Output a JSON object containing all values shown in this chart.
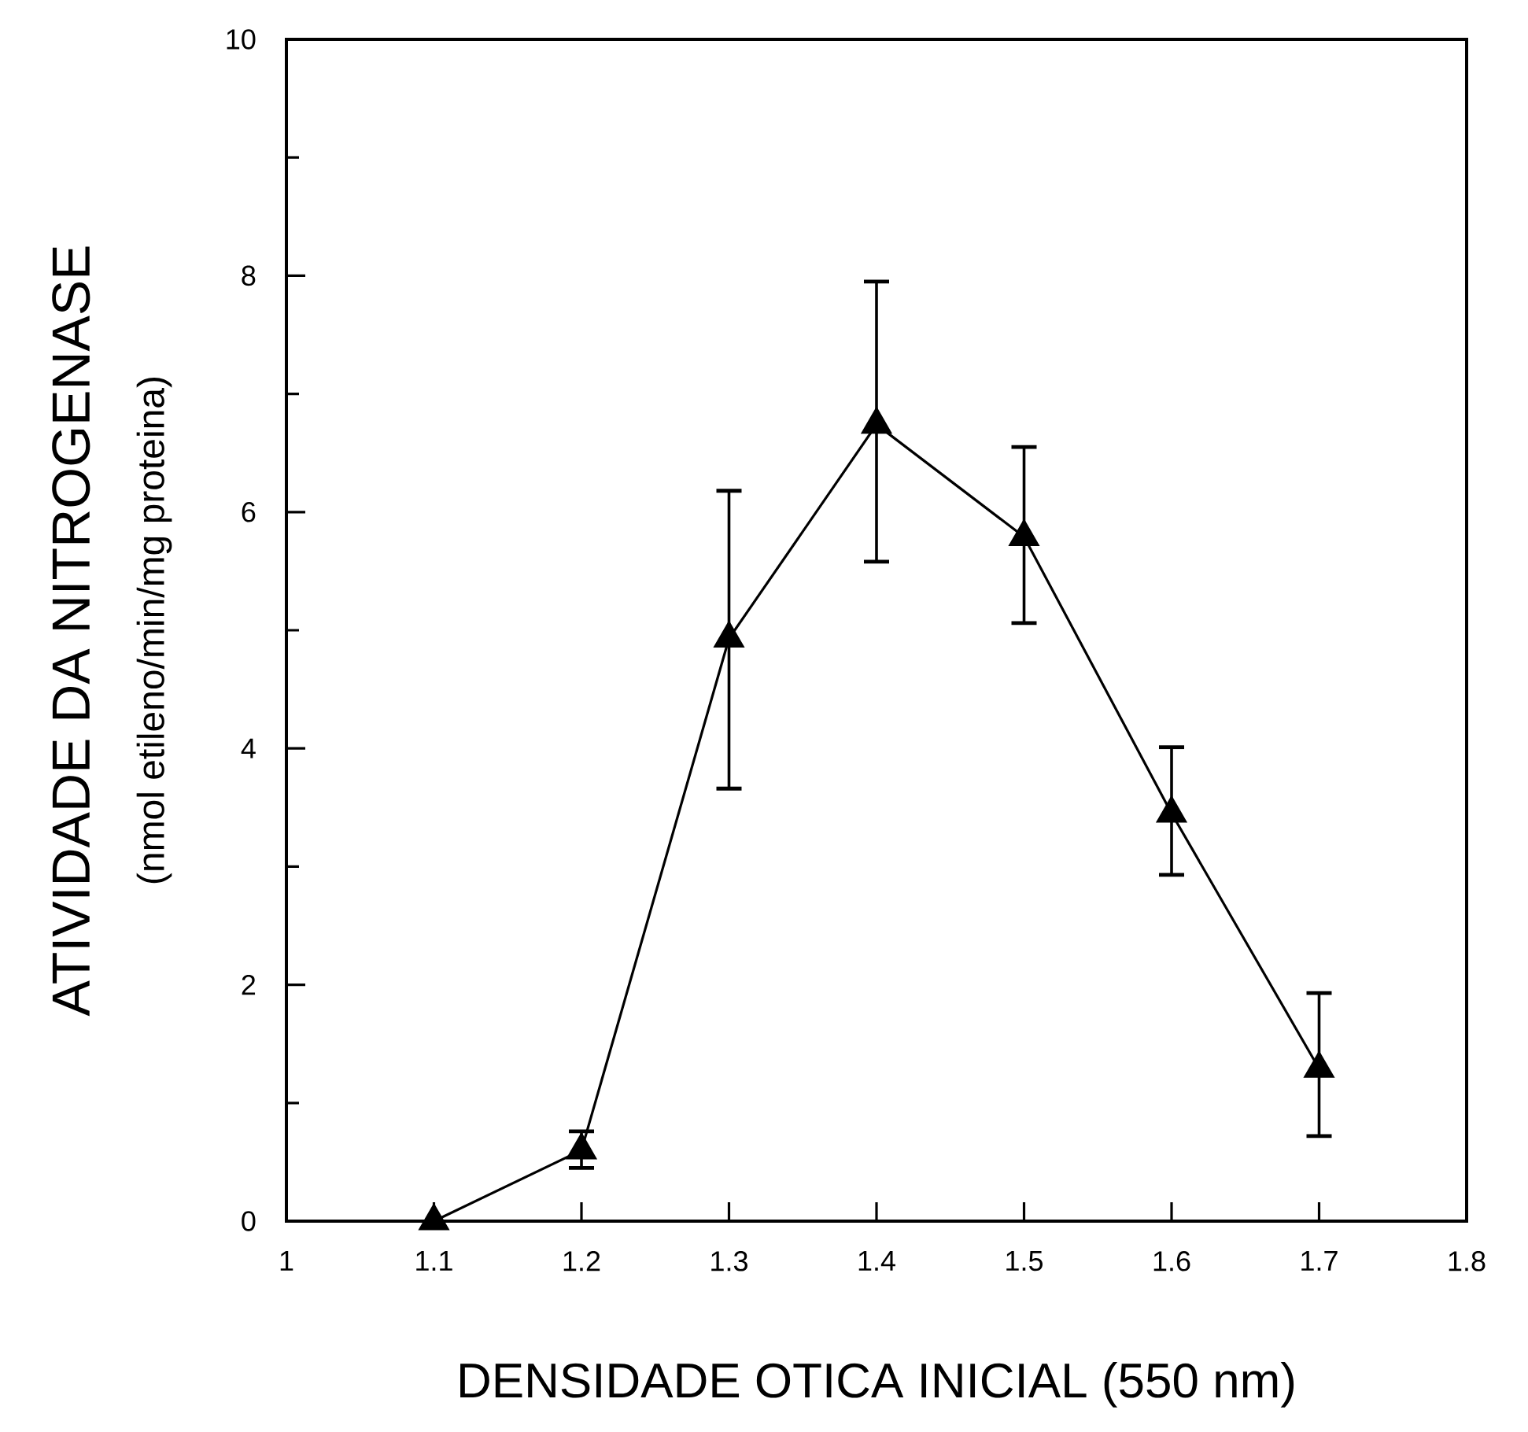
{
  "chart_data": {
    "type": "line",
    "xlabel": "DENSIDADE OTICA INICIAL (550 nm)",
    "ylabel": "ATIVIDADE DA NITROGENASE",
    "annotations": [
      "(nmol etileno/min/mg proteina)"
    ],
    "x": [
      1.1,
      1.2,
      1.3,
      1.4,
      1.5,
      1.6,
      1.7
    ],
    "values": [
      0,
      0.6,
      4.93,
      6.74,
      5.79,
      3.45,
      1.29
    ],
    "errors": [
      null,
      [
        0.45,
        0.76
      ],
      [
        3.66,
        6.18
      ],
      [
        5.58,
        7.95
      ],
      [
        5.06,
        6.55
      ],
      [
        2.93,
        4.01
      ],
      [
        0.72,
        1.93
      ]
    ],
    "color": "#000000",
    "marker": "triangle",
    "line_style": "solid",
    "xlim": [
      1,
      1.8
    ],
    "ylim": [
      0,
      10
    ],
    "xticks": [
      1,
      1.1,
      1.2,
      1.3,
      1.4,
      1.5,
      1.6,
      1.7,
      1.8
    ],
    "yticks": [
      0,
      {
        "value": 1,
        "label": null
      },
      2,
      {
        "value": 3,
        "label": null
      },
      4,
      {
        "value": 5,
        "label": null
      },
      6,
      {
        "value": 7,
        "label": null
      },
      8,
      {
        "value": 9,
        "label": null
      },
      10
    ]
  }
}
